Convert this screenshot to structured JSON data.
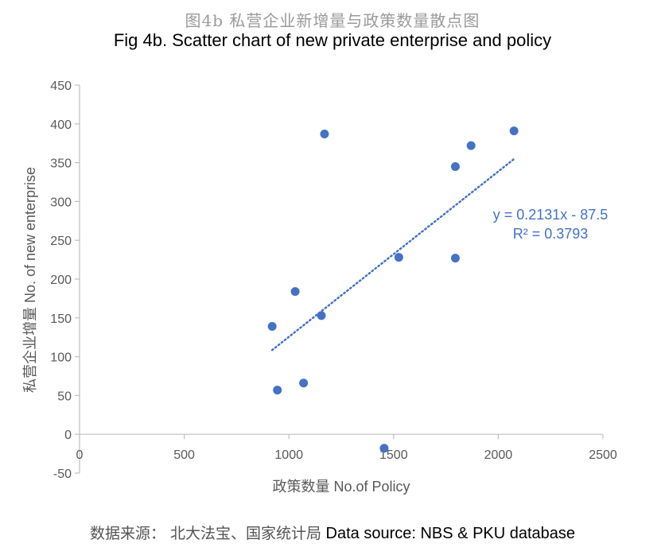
{
  "header": {
    "title_cn": "图4b 私营企业新增量与政策数量散点图",
    "title_en": "Fig 4b. Scatter chart of new private enterprise and policy"
  },
  "footer": {
    "source_cn": "数据来源： 北大法宝、国家统计局",
    "source_en": " Data source: NBS & PKU database"
  },
  "colors": {
    "marker": "#4472c4",
    "axis": "#bfbfbf",
    "tick_text": "#595959"
  },
  "chart_data": {
    "type": "scatter",
    "xlabel": "政策数量 No.of Policy",
    "ylabel": "私营企业增量 No. of new enterprise",
    "xlim": [
      0,
      2500
    ],
    "ylim": [
      -50,
      450
    ],
    "x_ticks": [
      0,
      500,
      1000,
      1500,
      2000,
      2500
    ],
    "y_ticks": [
      -50,
      0,
      50,
      100,
      150,
      200,
      250,
      300,
      350,
      400,
      450
    ],
    "grid": false,
    "points": [
      {
        "x": 920,
        "y": 139
      },
      {
        "x": 945,
        "y": 57
      },
      {
        "x": 1030,
        "y": 184
      },
      {
        "x": 1070,
        "y": 66
      },
      {
        "x": 1155,
        "y": 153
      },
      {
        "x": 1170,
        "y": 387
      },
      {
        "x": 1455,
        "y": -18
      },
      {
        "x": 1525,
        "y": 228
      },
      {
        "x": 1795,
        "y": 345
      },
      {
        "x": 1795,
        "y": 227
      },
      {
        "x": 1870,
        "y": 372
      },
      {
        "x": 2075,
        "y": 391
      }
    ],
    "trendline": {
      "type": "linear",
      "slope": 0.2131,
      "intercept": -87.5,
      "x_range": [
        920,
        2075
      ],
      "equation_label": "y = 0.2131x - 87.5",
      "r2_label": "R² = 0.3793"
    }
  }
}
